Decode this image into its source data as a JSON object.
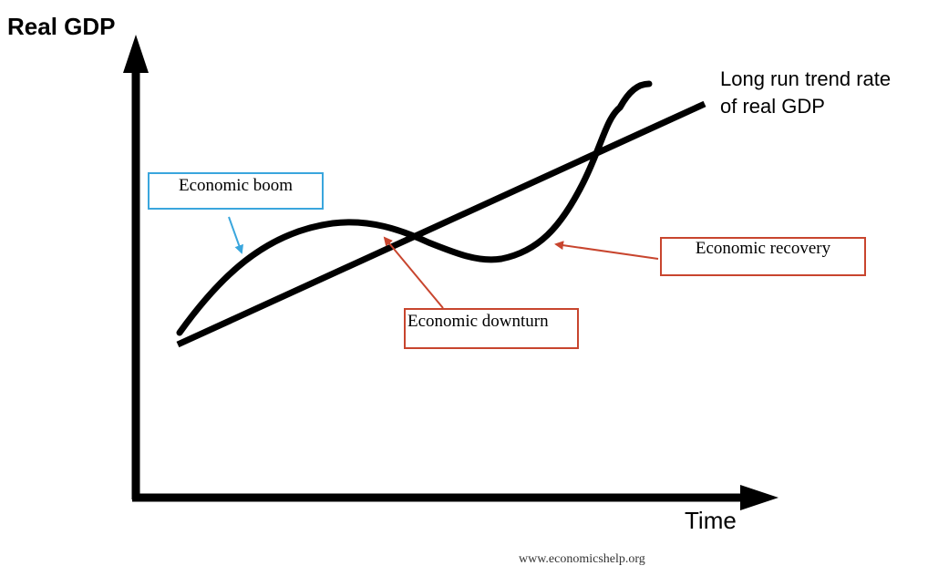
{
  "diagram": {
    "y_axis_label": "Real GDP",
    "x_axis_label": "Time",
    "trend_label_line1": "Long run trend rate",
    "trend_label_line2": "of real GDP",
    "callouts": {
      "boom": "Economic boom",
      "downturn": "Economic downturn",
      "recovery": "Economic recovery"
    },
    "source": "www.economicshelp.org"
  },
  "colors": {
    "axis": "#000000",
    "curve": "#000000",
    "boom_callout": "#3aa6dd",
    "downturn_callout": "#c8452e",
    "recovery_callout": "#c8452e"
  }
}
